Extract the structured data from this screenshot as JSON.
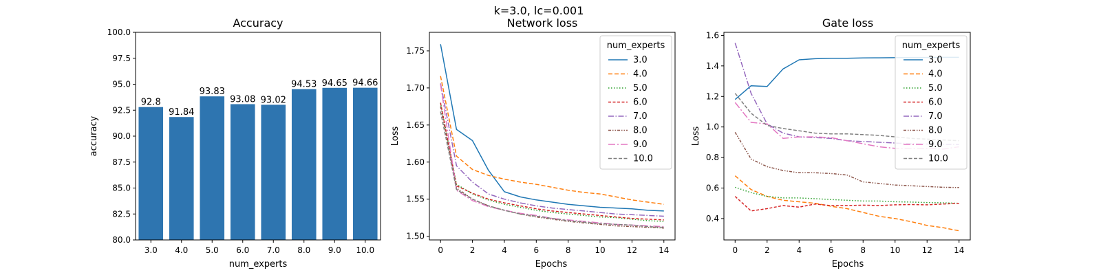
{
  "figure": {
    "title": "k=3.0, lc=0.001"
  },
  "colors": [
    "#1f77b4",
    "#ff7f0e",
    "#2ca02c",
    "#d62728",
    "#9467bd",
    "#8c564b",
    "#e377c2",
    "#7f7f7f"
  ],
  "dashes": [
    "",
    "6,3",
    "1.5,2.5",
    "4,2.5",
    "8,2.5,1.5,2.5",
    "4,2,1.5,2,1.5,2",
    "10,3,2,3",
    "5,2.5"
  ],
  "chart_data": [
    {
      "type": "bar",
      "title": "Accuracy",
      "xlabel": "num_experts",
      "ylabel": "accuracy",
      "categories": [
        "3.0",
        "4.0",
        "5.0",
        "6.0",
        "7.0",
        "8.0",
        "9.0",
        "10.0"
      ],
      "values": [
        92.8,
        91.84,
        93.83,
        93.08,
        93.02,
        94.53,
        94.65,
        94.66
      ],
      "bar_labels": [
        "92.8",
        "91.84",
        "93.83",
        "93.08",
        "93.02",
        "94.53",
        "94.65",
        "94.66"
      ],
      "ylim": [
        80,
        100
      ],
      "yticks": [
        80.0,
        82.5,
        85.0,
        87.5,
        90.0,
        92.5,
        95.0,
        97.5,
        100.0
      ],
      "ytick_labels": [
        "80.0",
        "82.5",
        "85.0",
        "87.5",
        "90.0",
        "92.5",
        "95.0",
        "97.5",
        "100.0"
      ],
      "color": "#2e75b0"
    },
    {
      "type": "line",
      "title": "Network loss",
      "xlabel": "Epochs",
      "ylabel": "Loss",
      "xlim": [
        -0.7,
        14.7
      ],
      "ylim": [
        1.495,
        1.775
      ],
      "xticks": [
        0,
        2,
        4,
        6,
        8,
        10,
        12,
        14
      ],
      "xtick_labels": [
        "0",
        "2",
        "4",
        "6",
        "8",
        "10",
        "12",
        "14"
      ],
      "yticks": [
        1.5,
        1.55,
        1.6,
        1.65,
        1.7,
        1.75
      ],
      "ytick_labels": [
        "1.50",
        "1.55",
        "1.60",
        "1.65",
        "1.70",
        "1.75"
      ],
      "legend": {
        "title": "num_experts",
        "position": "upper right"
      },
      "x": [
        0,
        1,
        2,
        3,
        4,
        5,
        6,
        7,
        8,
        9,
        10,
        11,
        12,
        13,
        14
      ],
      "series": [
        {
          "name": "3.0",
          "values": [
            1.759,
            1.644,
            1.629,
            1.589,
            1.56,
            1.553,
            1.549,
            1.546,
            1.543,
            1.541,
            1.539,
            1.538,
            1.537,
            1.535,
            1.534
          ]
        },
        {
          "name": "4.0",
          "values": [
            1.716,
            1.608,
            1.59,
            1.582,
            1.577,
            1.573,
            1.57,
            1.566,
            1.562,
            1.559,
            1.557,
            1.553,
            1.549,
            1.546,
            1.543
          ]
        },
        {
          "name": "5.0",
          "values": [
            1.68,
            1.57,
            1.557,
            1.549,
            1.543,
            1.539,
            1.535,
            1.532,
            1.53,
            1.528,
            1.526,
            1.525,
            1.523,
            1.521,
            1.52
          ]
        },
        {
          "name": "6.0",
          "values": [
            1.68,
            1.568,
            1.558,
            1.55,
            1.545,
            1.541,
            1.537,
            1.534,
            1.532,
            1.53,
            1.528,
            1.526,
            1.524,
            1.523,
            1.522
          ]
        },
        {
          "name": "7.0",
          "values": [
            1.706,
            1.595,
            1.573,
            1.557,
            1.55,
            1.545,
            1.541,
            1.538,
            1.536,
            1.534,
            1.532,
            1.53,
            1.529,
            1.528,
            1.527
          ]
        },
        {
          "name": "8.0",
          "values": [
            1.675,
            1.565,
            1.55,
            1.541,
            1.535,
            1.53,
            1.526,
            1.523,
            1.52,
            1.518,
            1.516,
            1.514,
            1.513,
            1.512,
            1.511
          ]
        },
        {
          "name": "9.0",
          "values": [
            1.705,
            1.562,
            1.548,
            1.54,
            1.535,
            1.531,
            1.528,
            1.524,
            1.522,
            1.52,
            1.518,
            1.516,
            1.515,
            1.514,
            1.513
          ]
        },
        {
          "name": "10.0",
          "values": [
            1.668,
            1.563,
            1.55,
            1.541,
            1.535,
            1.53,
            1.527,
            1.524,
            1.521,
            1.519,
            1.517,
            1.516,
            1.515,
            1.513,
            1.512
          ]
        }
      ]
    },
    {
      "type": "line",
      "title": "Gate loss",
      "xlabel": "Epochs",
      "ylabel": "Loss",
      "xlim": [
        -0.7,
        14.7
      ],
      "ylim": [
        0.26,
        1.62
      ],
      "xticks": [
        0,
        2,
        4,
        6,
        8,
        10,
        12,
        14
      ],
      "xtick_labels": [
        "0",
        "2",
        "4",
        "6",
        "8",
        "10",
        "12",
        "14"
      ],
      "yticks": [
        0.4,
        0.6,
        0.8,
        1.0,
        1.2,
        1.4,
        1.6
      ],
      "ytick_labels": [
        "0.4",
        "0.6",
        "0.8",
        "1.0",
        "1.2",
        "1.4",
        "1.6"
      ],
      "legend": {
        "title": "num_experts",
        "position": "upper right"
      },
      "x": [
        0,
        1,
        2,
        3,
        4,
        5,
        6,
        7,
        8,
        9,
        10,
        11,
        12,
        13,
        14
      ],
      "series": [
        {
          "name": "3.0",
          "values": [
            1.18,
            1.27,
            1.265,
            1.38,
            1.44,
            1.447,
            1.45,
            1.45,
            1.452,
            1.453,
            1.454,
            1.455,
            1.455,
            1.456,
            1.456
          ]
        },
        {
          "name": "4.0",
          "values": [
            0.68,
            0.59,
            0.545,
            0.52,
            0.51,
            0.5,
            0.48,
            0.465,
            0.44,
            0.415,
            0.4,
            0.38,
            0.355,
            0.34,
            0.32
          ]
        },
        {
          "name": "5.0",
          "values": [
            0.605,
            0.57,
            0.545,
            0.535,
            0.535,
            0.53,
            0.525,
            0.52,
            0.515,
            0.515,
            0.51,
            0.508,
            0.505,
            0.503,
            0.5
          ]
        },
        {
          "name": "6.0",
          "values": [
            0.545,
            0.45,
            0.465,
            0.485,
            0.475,
            0.495,
            0.485,
            0.485,
            0.488,
            0.485,
            0.49,
            0.492,
            0.49,
            0.495,
            0.5
          ]
        },
        {
          "name": "7.0",
          "values": [
            1.55,
            1.22,
            1.02,
            0.96,
            0.935,
            0.93,
            0.925,
            0.91,
            0.905,
            0.9,
            0.895,
            0.89,
            0.888,
            0.886,
            0.885
          ]
        },
        {
          "name": "8.0",
          "values": [
            0.965,
            0.79,
            0.74,
            0.715,
            0.7,
            0.7,
            0.695,
            0.685,
            0.64,
            0.63,
            0.62,
            0.615,
            0.61,
            0.605,
            0.603
          ]
        },
        {
          "name": "9.0",
          "values": [
            1.16,
            1.03,
            1.02,
            0.925,
            0.935,
            0.935,
            0.93,
            0.91,
            0.89,
            0.87,
            0.86,
            0.86,
            0.86,
            0.855,
            0.87
          ]
        },
        {
          "name": "10.0",
          "values": [
            1.22,
            1.09,
            1.01,
            0.99,
            0.975,
            0.96,
            0.955,
            0.955,
            0.95,
            0.945,
            0.935,
            0.925,
            0.92,
            0.915,
            0.91
          ]
        }
      ]
    }
  ]
}
